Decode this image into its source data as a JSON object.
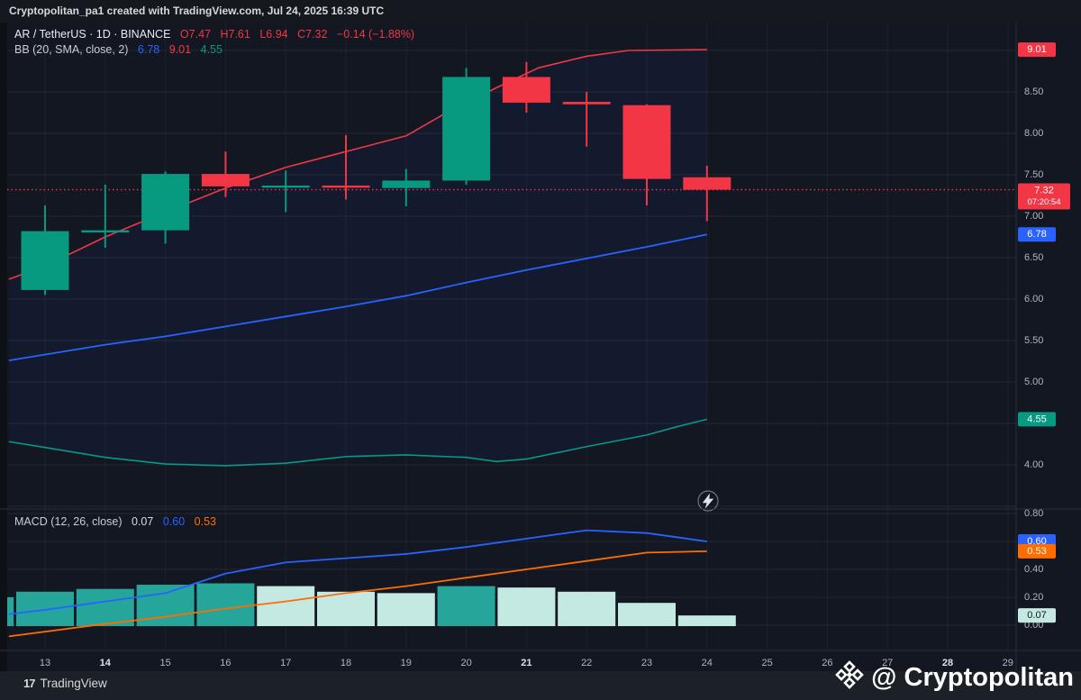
{
  "header": {
    "title": "Cryptopolitan_pa1 created with TradingView.com, Jul 24, 2025 16:39 UTC"
  },
  "legend": {
    "symbol_line": "AR / TetherUS · 1D · BINANCE",
    "ohlc": {
      "o": "O7.47",
      "h": "H7.61",
      "l": "L6.94",
      "c": "C7.32",
      "change": "−0.14 (−1.88%)"
    },
    "bb": {
      "label": "BB (20, SMA, close, 2)",
      "basis": "6.78",
      "upper": "9.01",
      "lower": "4.55"
    }
  },
  "macd_legend": {
    "label": "MACD",
    "params": "(12, 26, close)",
    "hist": "0.07",
    "macd": "0.60",
    "signal": "0.53"
  },
  "footer": {
    "logo_glyph": "17",
    "brand": "TradingView",
    "watermark": "@ Cryptopolitan"
  },
  "colors": {
    "background": "#131722",
    "left_strip": "#0d1014",
    "grid": "rgba(255,255,255,0.07)",
    "grid_vertical": "rgba(255,255,255,0.045)",
    "up": "#089981",
    "down": "#f23645",
    "bb_upper": "#f23645",
    "bb_basis": "#2962ff",
    "bb_lower": "#089981",
    "band_fill": "rgba(41,98,255,0.05)",
    "macd_line": "#2962ff",
    "signal_line": "#ff6d00",
    "hist_grow": "#26a69a",
    "hist_fall": "#c4e8e2",
    "axis_text": "#b2b5be",
    "axis_text_bold": "#dde0e6",
    "divider": "#2a2e39",
    "price_line": "#f23645",
    "badge_text": "#ffffff"
  },
  "chart_data": {
    "type": "candlestick",
    "symbol": "AR / TetherUS",
    "interval": "1D",
    "exchange": "BINANCE",
    "time_axis": {
      "labels": [
        "13",
        "14",
        "15",
        "16",
        "17",
        "18",
        "19",
        "20",
        "21",
        "22",
        "23",
        "24",
        "25",
        "26",
        "27",
        "28",
        "29"
      ],
      "bold": [
        "14",
        "21",
        "28"
      ],
      "first_day": 13
    },
    "price_axis": {
      "ticks": [
        "8.50",
        "8.00",
        "7.50",
        "7.00",
        "6.50",
        "6.00",
        "5.50",
        "5.00",
        "4.00"
      ],
      "grid_values": [
        9.0,
        8.5,
        8.0,
        7.5,
        7.0,
        6.5,
        6.0,
        5.5,
        5.0,
        4.5,
        4.0,
        3.5
      ],
      "badges": [
        {
          "label": "9.01",
          "value": 9.01,
          "color": "#f23645",
          "text": "#ffffff"
        },
        {
          "label": "6.78",
          "value": 6.78,
          "color": "#2962ff",
          "text": "#ffffff"
        },
        {
          "label": "4.55",
          "value": 4.55,
          "color": "#089981",
          "text": "#ffffff"
        }
      ],
      "last_price": {
        "label": "7.32",
        "value": 7.32,
        "countdown": "07:20:54",
        "color": "#f23645"
      }
    },
    "candles": [
      {
        "day": 13,
        "o": 6.11,
        "h": 7.13,
        "l": 6.05,
        "c": 6.82
      },
      {
        "day": 14,
        "o": 6.81,
        "h": 7.38,
        "l": 6.62,
        "c": 6.83
      },
      {
        "day": 15,
        "o": 6.83,
        "h": 7.54,
        "l": 6.67,
        "c": 7.51
      },
      {
        "day": 16,
        "o": 7.51,
        "h": 7.78,
        "l": 7.23,
        "c": 7.36
      },
      {
        "day": 17,
        "o": 7.36,
        "h": 7.55,
        "l": 7.05,
        "c": 7.37
      },
      {
        "day": 18,
        "o": 7.37,
        "h": 7.98,
        "l": 7.2,
        "c": 7.36
      },
      {
        "day": 19,
        "o": 7.34,
        "h": 7.57,
        "l": 7.12,
        "c": 7.43
      },
      {
        "day": 20,
        "o": 7.43,
        "h": 8.79,
        "l": 7.38,
        "c": 8.68
      },
      {
        "day": 21,
        "o": 8.68,
        "h": 8.86,
        "l": 8.25,
        "c": 8.37
      },
      {
        "day": 22,
        "o": 8.38,
        "h": 8.5,
        "l": 7.84,
        "c": 8.35
      },
      {
        "day": 23,
        "o": 8.34,
        "h": 8.35,
        "l": 7.13,
        "c": 7.45
      },
      {
        "day": 24,
        "o": 7.47,
        "h": 7.61,
        "l": 6.94,
        "c": 7.32
      }
    ],
    "bollinger": {
      "upper": [
        [
          12.4,
          6.24
        ],
        [
          13,
          6.4
        ],
        [
          14,
          6.75
        ],
        [
          15,
          7.05
        ],
        [
          16,
          7.34
        ],
        [
          17,
          7.59
        ],
        [
          18,
          7.78
        ],
        [
          19,
          7.97
        ],
        [
          19.6,
          8.22
        ],
        [
          20.5,
          8.55
        ],
        [
          21.2,
          8.79
        ],
        [
          22,
          8.93
        ],
        [
          22.7,
          9.0
        ],
        [
          24,
          9.01
        ]
      ],
      "basis": [
        [
          12.4,
          5.26
        ],
        [
          14,
          5.45
        ],
        [
          15,
          5.55
        ],
        [
          16,
          5.67
        ],
        [
          17,
          5.79
        ],
        [
          18,
          5.91
        ],
        [
          19,
          6.04
        ],
        [
          20,
          6.2
        ],
        [
          21,
          6.35
        ],
        [
          22,
          6.49
        ],
        [
          23,
          6.63
        ],
        [
          24,
          6.78
        ]
      ],
      "lower": [
        [
          12.4,
          4.28
        ],
        [
          13,
          4.21
        ],
        [
          14,
          4.09
        ],
        [
          15,
          4.01
        ],
        [
          16,
          3.99
        ],
        [
          17,
          4.02
        ],
        [
          18,
          4.1
        ],
        [
          19,
          4.12
        ],
        [
          20,
          4.09
        ],
        [
          20.5,
          4.04
        ],
        [
          21,
          4.07
        ],
        [
          22,
          4.22
        ],
        [
          23,
          4.36
        ],
        [
          23.5,
          4.46
        ],
        [
          24,
          4.55
        ]
      ]
    },
    "macd": {
      "ticks": [
        "0.80",
        "0.40",
        "0.20",
        "0.00"
      ],
      "grid_values": [
        0.8,
        0.6,
        0.4,
        0.2,
        0.0
      ],
      "histogram": [
        {
          "day": 12,
          "v": 0.2,
          "tone": "grow"
        },
        {
          "day": 13,
          "v": 0.24,
          "tone": "grow"
        },
        {
          "day": 14,
          "v": 0.26,
          "tone": "grow"
        },
        {
          "day": 15,
          "v": 0.29,
          "tone": "grow"
        },
        {
          "day": 16,
          "v": 0.3,
          "tone": "grow"
        },
        {
          "day": 17,
          "v": 0.28,
          "tone": "fall"
        },
        {
          "day": 18,
          "v": 0.24,
          "tone": "fall"
        },
        {
          "day": 19,
          "v": 0.23,
          "tone": "fall"
        },
        {
          "day": 20,
          "v": 0.28,
          "tone": "grow"
        },
        {
          "day": 21,
          "v": 0.27,
          "tone": "fall"
        },
        {
          "day": 22,
          "v": 0.24,
          "tone": "fall"
        },
        {
          "day": 23,
          "v": 0.16,
          "tone": "fall"
        },
        {
          "day": 24,
          "v": 0.07,
          "tone": "fall"
        }
      ],
      "macd_line": [
        [
          12.4,
          0.08
        ],
        [
          13,
          0.11
        ],
        [
          14,
          0.17
        ],
        [
          15,
          0.23
        ],
        [
          16,
          0.37
        ],
        [
          17,
          0.45
        ],
        [
          18,
          0.48
        ],
        [
          19,
          0.51
        ],
        [
          20,
          0.56
        ],
        [
          21,
          0.62
        ],
        [
          22,
          0.68
        ],
        [
          23,
          0.66
        ],
        [
          24,
          0.6
        ]
      ],
      "signal_line": [
        [
          12.4,
          -0.08
        ],
        [
          14,
          0.01
        ],
        [
          15,
          0.06
        ],
        [
          16,
          0.12
        ],
        [
          17,
          0.17
        ],
        [
          18,
          0.23
        ],
        [
          19,
          0.28
        ],
        [
          20,
          0.34
        ],
        [
          21,
          0.4
        ],
        [
          22,
          0.46
        ],
        [
          23,
          0.52
        ],
        [
          24,
          0.53
        ]
      ],
      "badges": [
        {
          "label": "0.60",
          "value": 0.6,
          "color": "#2962ff",
          "text": "#ffffff"
        },
        {
          "label": "0.53",
          "value": 0.53,
          "color": "#ff6d00",
          "text": "#ffffff"
        },
        {
          "label": "0.07",
          "value": 0.07,
          "color": "#c4e8e2",
          "text": "#131722"
        }
      ]
    }
  }
}
